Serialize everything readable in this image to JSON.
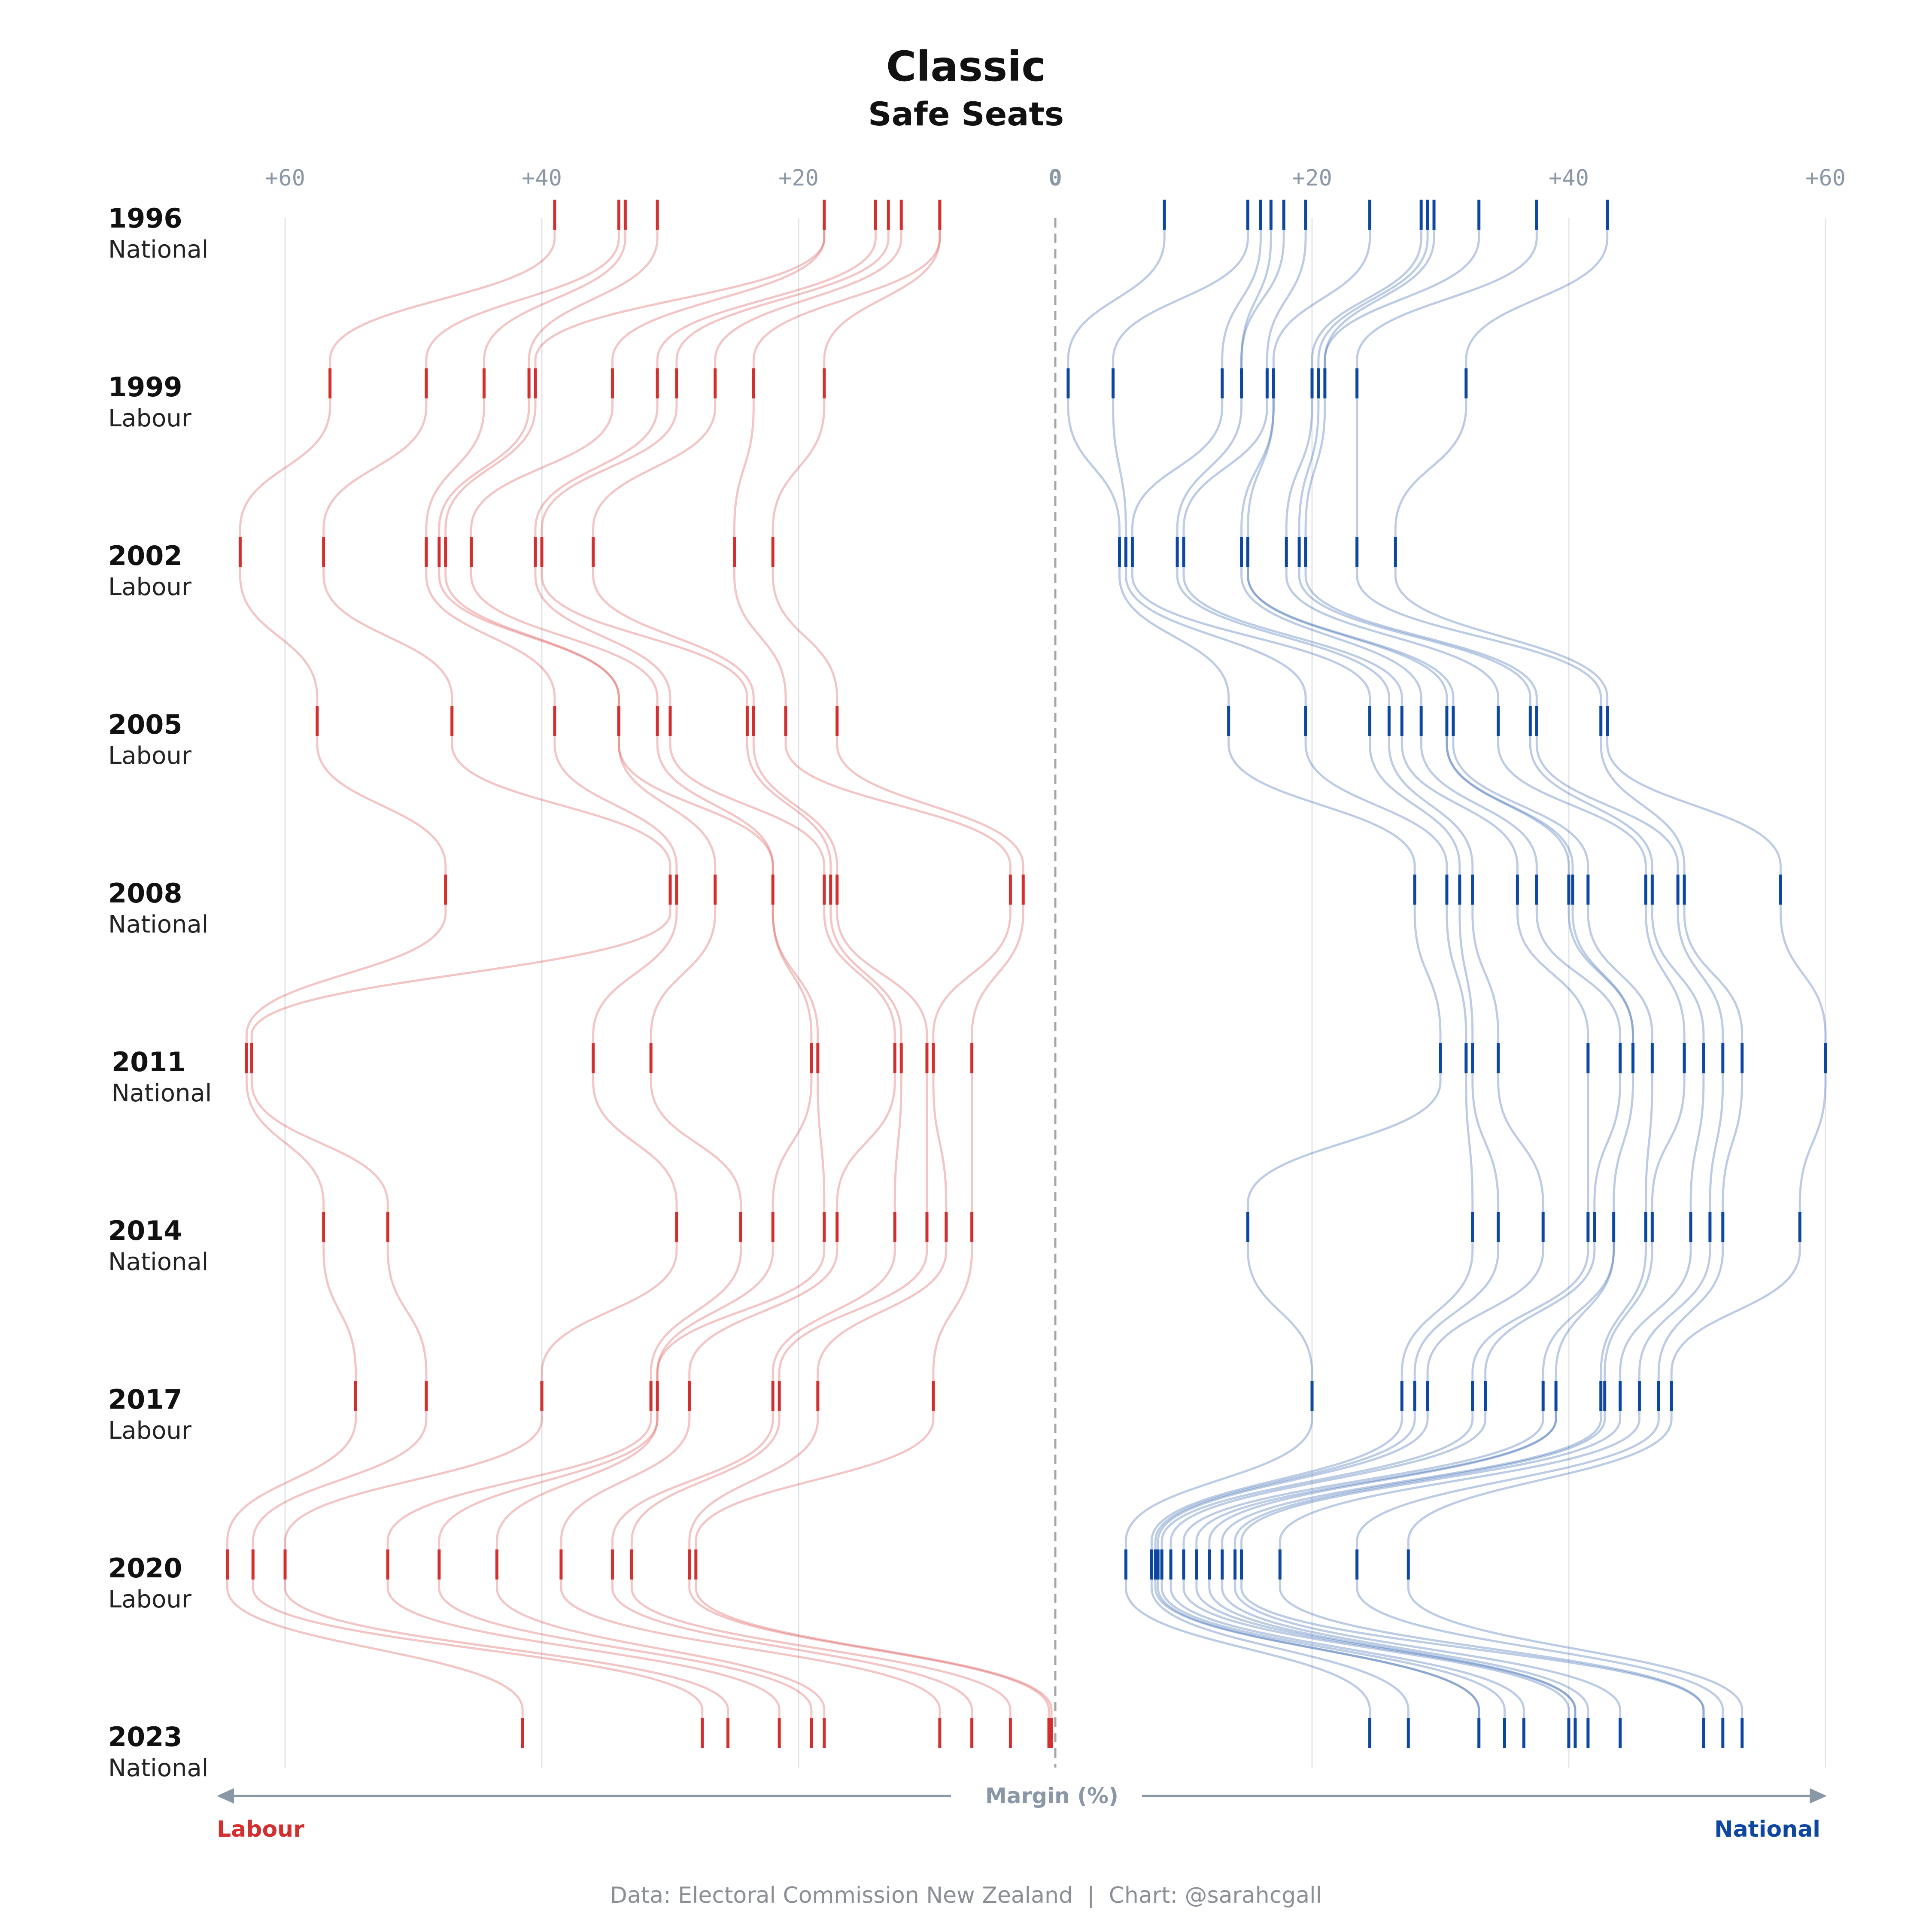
{
  "title": "Classic",
  "subtitle": "Safe Seats",
  "source": "Data: Electoral Commission New Zealand  |  Chart: @sarahcgall",
  "axis_label": "Margin (%)",
  "left_party_label": "Labour",
  "right_party_label": "National",
  "colors": {
    "labour": "#d32f2f",
    "national": "#0d47a1",
    "grid": "#e2e5e9",
    "axis": "#8a97a6",
    "zero_line": "#a6a6a6"
  },
  "x_ticks": [
    "+60",
    "+40",
    "+20",
    "0",
    "+20",
    "+40",
    "+60"
  ],
  "chart_data": {
    "type": "scatter",
    "title": "Classic",
    "subtitle": "Safe Seats",
    "xlabel": "Margin (%)",
    "xlim": [
      -60,
      60
    ],
    "x_tick_values": [
      -60,
      -40,
      -20,
      0,
      20,
      40,
      60
    ],
    "grid": true,
    "years": [
      {
        "year": "1996",
        "winner": "National",
        "labour": [
          39,
          34,
          33.5,
          31,
          18,
          14,
          13,
          12,
          9,
          9
        ],
        "national": [
          8.5,
          15,
          16,
          16.8,
          17.8,
          19.5,
          24.5,
          28.5,
          29,
          29.5,
          33,
          37.5,
          43
        ]
      },
      {
        "year": "1999",
        "winner": "Labour",
        "labour": [
          56.5,
          49,
          44.5,
          41,
          40.5,
          34.5,
          31,
          29.5,
          26.5,
          23.5,
          18
        ],
        "national": [
          1,
          4.5,
          13,
          14.5,
          16.5,
          17,
          20,
          20.5,
          21,
          23.5,
          32
        ]
      },
      {
        "year": "2002",
        "winner": "Labour",
        "labour": [
          63.5,
          57,
          49,
          48,
          47.5,
          45.5,
          40.5,
          40,
          36,
          25,
          22
        ],
        "national": [
          5,
          5.5,
          6,
          9.5,
          10,
          14.5,
          15,
          18,
          19,
          19.5,
          23.5,
          26.5
        ]
      },
      {
        "year": "2005",
        "winner": "Labour",
        "labour": [
          57.5,
          47,
          39,
          34,
          34,
          31,
          30,
          24,
          23.5,
          21,
          17
        ],
        "national": [
          13.5,
          19.5,
          24.5,
          26,
          27,
          28.5,
          30.5,
          31,
          34.5,
          37,
          37.5,
          42.5,
          43
        ]
      },
      {
        "year": "2008",
        "winner": "National",
        "labour": [
          47.5,
          30,
          29.5,
          26.5,
          22,
          18,
          17.5,
          17,
          3.5,
          2.5
        ],
        "national": [
          28,
          30.5,
          31.5,
          32.5,
          36,
          37.5,
          40,
          40.3,
          41.5,
          46,
          46.5,
          48.5,
          49,
          56.5
        ]
      },
      {
        "year": "2011",
        "winner": "National",
        "labour": [
          63,
          62.6,
          36,
          31.5,
          19,
          18.5,
          12.5,
          12,
          10,
          9.5,
          6.5
        ],
        "national": [
          30,
          32,
          32.5,
          34.5,
          41.5,
          44,
          45,
          46.5,
          49,
          50.5,
          52,
          53.5,
          60
        ]
      },
      {
        "year": "2014",
        "winner": "National",
        "labour": [
          57,
          52,
          29.5,
          24.5,
          22,
          18,
          17,
          12.5,
          10,
          8.5,
          6.5
        ],
        "national": [
          15,
          32.5,
          34.5,
          38,
          41.5,
          42,
          43.5,
          46,
          46.5,
          49.5,
          51,
          52,
          58
        ]
      },
      {
        "year": "2017",
        "winner": "Labour",
        "labour": [
          54.5,
          49,
          40,
          31.5,
          31,
          28.5,
          22,
          21.5,
          18.5,
          9.5
        ],
        "national": [
          20,
          27,
          28,
          29,
          32.5,
          33.5,
          38,
          39,
          42.5,
          42.8,
          44,
          45.5,
          47,
          48
        ]
      },
      {
        "year": "2020",
        "winner": "Labour",
        "labour": [
          64.5,
          62.5,
          60,
          52,
          48,
          43.5,
          38.5,
          34.5,
          33,
          28.5,
          28
        ],
        "national": [
          5.5,
          7.5,
          7.8,
          8,
          8.3,
          9,
          10,
          11,
          12,
          13,
          14,
          14.5,
          17.5,
          23.5,
          27.5
        ]
      },
      {
        "year": "2023",
        "winner": "National",
        "labour": [
          41.5,
          27.5,
          25.5,
          21.5,
          19,
          18,
          9,
          6.5,
          3.5,
          0.5,
          0.3
        ],
        "national": [
          24.5,
          27.5,
          33,
          35,
          36.5,
          40,
          40.5,
          41.5,
          44,
          50.5,
          52,
          53.5
        ]
      }
    ]
  }
}
